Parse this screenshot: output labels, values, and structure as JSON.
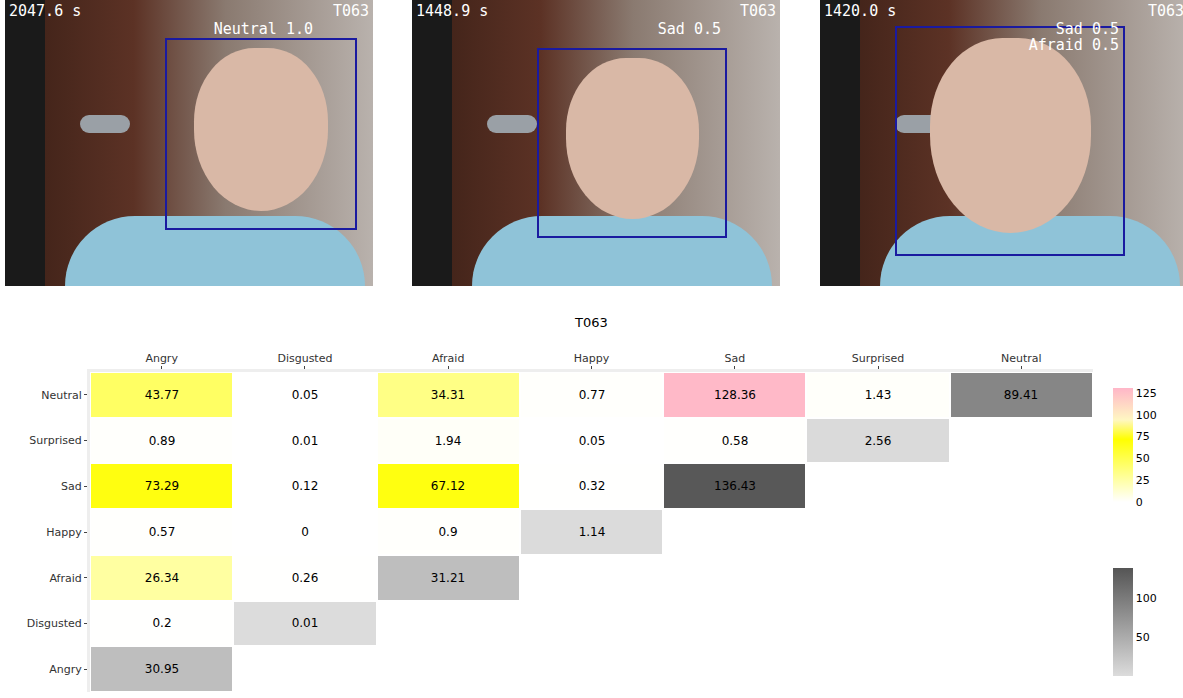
{
  "frames": [
    {
      "time": "2047.6 s",
      "id": "T063",
      "labels": [
        "Neutral 1.0"
      ]
    },
    {
      "time": "1448.9 s",
      "id": "T063",
      "labels": [
        "Sad 0.5"
      ]
    },
    {
      "time": "1420.0 s",
      "id": "T063",
      "labels": [
        "Sad 0.5",
        "Afraid 0.5"
      ]
    }
  ],
  "chart_data": {
    "type": "heatmap",
    "title": "T063",
    "x_categories": [
      "Angry",
      "Disgusted",
      "Afraid",
      "Happy",
      "Sad",
      "Surprised",
      "Neutral"
    ],
    "y_categories": [
      "Neutral",
      "Surprised",
      "Sad",
      "Happy",
      "Afraid",
      "Disgusted",
      "Angry"
    ],
    "cells": [
      [
        43.77,
        0.05,
        34.31,
        0.77,
        128.36,
        1.43,
        89.41
      ],
      [
        0.89,
        0.01,
        1.94,
        0.05,
        0.58,
        2.56,
        null
      ],
      [
        73.29,
        0.12,
        67.12,
        0.32,
        136.43,
        null,
        null
      ],
      [
        0.57,
        0,
        0.9,
        1.14,
        null,
        null,
        null
      ],
      [
        26.34,
        0.26,
        31.21,
        null,
        null,
        null,
        null
      ],
      [
        0.2,
        0.01,
        null,
        null,
        null,
        null,
        null
      ],
      [
        30.95,
        null,
        null,
        null,
        null,
        null,
        null
      ]
    ],
    "data_labels": true,
    "colorbar_range": [
      0,
      130
    ],
    "colorbar_ticks": [
      0,
      25,
      50,
      75,
      100,
      125
    ],
    "diagonal_colorbar_range": [
      0,
      140
    ],
    "diagonal_colorbar_ticks": [
      50,
      100
    ]
  }
}
